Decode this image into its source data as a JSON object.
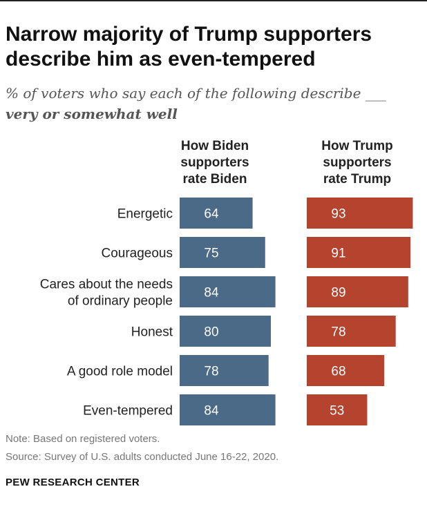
{
  "title": "Narrow majority of Trump supporters describe him as even-tempered",
  "subtitle_line1": "% of voters who say each of the following describe ___",
  "subtitle_line2": "very or somewhat well",
  "colors": {
    "biden": "#4b6a88",
    "trump": "#b5442f"
  },
  "chart_data": {
    "type": "bar",
    "title": "Narrow majority of Trump supporters describe him as even-tempered",
    "categories": [
      [
        "Energetic"
      ],
      [
        "Courageous"
      ],
      [
        "Cares about the needs",
        "of ordinary people"
      ],
      [
        "Honest"
      ],
      [
        "A good role model"
      ],
      [
        "Even-tempered"
      ]
    ],
    "series": [
      {
        "name_lines": [
          "How Biden",
          "supporters",
          "rate Biden"
        ],
        "values": [
          64,
          75,
          84,
          80,
          78,
          84
        ]
      },
      {
        "name_lines": [
          "How Trump",
          "supporters",
          "rate Trump"
        ],
        "values": [
          93,
          91,
          89,
          78,
          68,
          53
        ]
      }
    ],
    "ylim": [
      0,
      100
    ]
  },
  "note": "Note: Based on registered voters.",
  "source": "Source: Survey of U.S. adults conducted June 16-22, 2020.",
  "brand": "PEW RESEARCH CENTER"
}
